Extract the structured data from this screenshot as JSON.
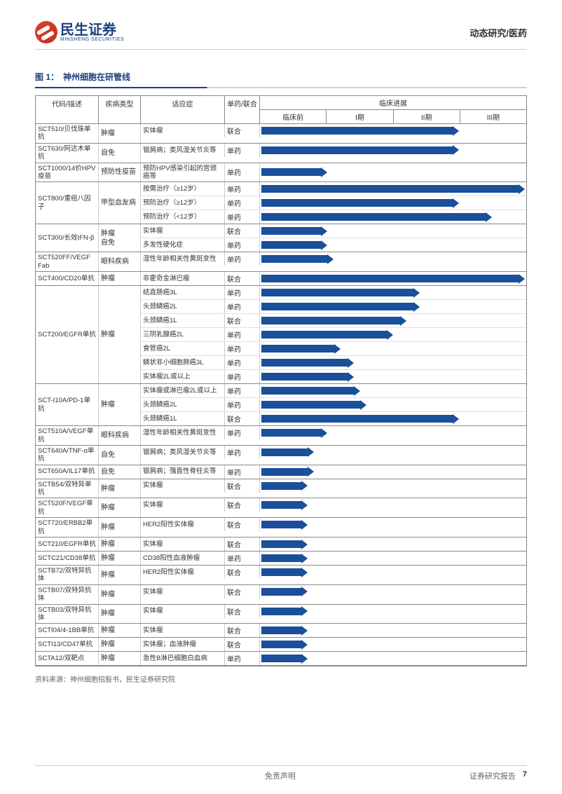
{
  "header": {
    "logo_zh": "民生证券",
    "logo_en": "MINSHENG SECURITIES",
    "right_text": "动态研究/医药"
  },
  "figure": {
    "label": "图 1：",
    "title": "神州细胞在研管线"
  },
  "table": {
    "columns": [
      "代码/描述",
      "疾病类型",
      "适应症",
      "单药/联合"
    ],
    "progress_header": "临床进展",
    "phases": [
      "临床前",
      "I期",
      "II期",
      "III期"
    ],
    "phase_count": 4,
    "arrow_color": "#1a4f9a",
    "rows": [
      {
        "code": "SCT510/贝伐珠单抗",
        "disease": "肿瘤",
        "sub": [
          {
            "indication": "实体瘤",
            "mono": "联合",
            "progress": 3.0
          }
        ]
      },
      {
        "code": "SCT630/阿达木单抗",
        "disease": "自免",
        "sub": [
          {
            "indication": "银屑病；类风湿关节炎等",
            "mono": "单药",
            "progress": 3.0
          }
        ]
      },
      {
        "code": "SCT1000/14价HPV 疫苗",
        "disease": "预防性疫苗",
        "sub": [
          {
            "indication": "预防HPV感染引起的宫颈癌等",
            "mono": "单药",
            "progress": 1.0
          }
        ]
      },
      {
        "code": "SCT800/重组八因子",
        "disease": "甲型血友病",
        "sub": [
          {
            "indication": "按需治疗（≥12岁）",
            "mono": "单药",
            "progress": 4.0
          },
          {
            "indication": "预防治疗（≥12岁）",
            "mono": "单药",
            "progress": 3.0
          },
          {
            "indication": "预防治疗（<12岁）",
            "mono": "单药",
            "progress": 3.5
          }
        ]
      },
      {
        "code": "SCT300/长效IFN-β",
        "disease": "肿瘤\n自免",
        "sub": [
          {
            "indication": "实体瘤",
            "mono": "联合",
            "progress": 1.0
          },
          {
            "indication": "多发性硬化症",
            "mono": "单药",
            "progress": 1.0
          }
        ]
      },
      {
        "code": "SCT520FF/VEGF Fab",
        "disease": "眼科疾病",
        "sub": [
          {
            "indication": "湿性年龄相关性黄斑变性",
            "mono": "单药",
            "progress": 1.1
          }
        ]
      },
      {
        "code": "SCT400/CD20单抗",
        "disease": "肿瘤",
        "sub": [
          {
            "indication": "非霍奇金淋巴瘤",
            "mono": "联合",
            "progress": 4.0
          }
        ]
      },
      {
        "code": "SCT200/EGFR单抗",
        "disease": "肿瘤",
        "sub": [
          {
            "indication": "结直肠癌3L",
            "mono": "单药",
            "progress": 2.4
          },
          {
            "indication": "头颈鳞癌2L",
            "mono": "单药",
            "progress": 2.4
          },
          {
            "indication": "头颈鳞癌1L",
            "mono": "联合",
            "progress": 2.2
          },
          {
            "indication": "三阴乳腺癌2L",
            "mono": "单药",
            "progress": 2.0
          },
          {
            "indication": "食管癌2L",
            "mono": "单药",
            "progress": 1.2
          },
          {
            "indication": "鳞状非小细胞肺癌3L",
            "mono": "单药",
            "progress": 1.4
          },
          {
            "indication": "实体瘤2L或以上",
            "mono": "单药",
            "progress": 1.4
          }
        ]
      },
      {
        "code": "SCT-I10A/PD-1单抗",
        "disease": "肿瘤",
        "sub": [
          {
            "indication": "实体瘤或淋巴瘤2L或以上",
            "mono": "单药",
            "progress": 1.5
          },
          {
            "indication": "头颈鳞癌2L",
            "mono": "单药",
            "progress": 1.6
          },
          {
            "indication": "头颈鳞癌1L",
            "mono": "联合",
            "progress": 3.0
          }
        ]
      },
      {
        "code": "SCT510A/VEGF单抗",
        "disease": "眼科疾病",
        "sub": [
          {
            "indication": "湿性年龄相关性黄斑变性",
            "mono": "单药",
            "progress": 1.0
          }
        ]
      },
      {
        "code": "SCT640A/TNF-α单抗",
        "disease": "自免",
        "sub": [
          {
            "indication": "银屑病；类风湿关节炎等",
            "mono": "单药",
            "progress": 0.8
          }
        ]
      },
      {
        "code": "SCT650A/IL17单抗",
        "disease": "自免",
        "sub": [
          {
            "indication": "银屑病；强直性脊柱炎等",
            "mono": "单药",
            "progress": 0.8
          }
        ]
      },
      {
        "code": "SCTB54/双特异单抗",
        "disease": "肿瘤",
        "sub": [
          {
            "indication": "实体瘤",
            "mono": "联合",
            "progress": 0.7
          }
        ]
      },
      {
        "code": "SCT520F/VEGF单抗",
        "disease": "肿瘤",
        "sub": [
          {
            "indication": "实体瘤",
            "mono": "联合",
            "progress": 0.7
          }
        ]
      },
      {
        "code": "SCT720/ERBB2单抗",
        "disease": "肿瘤",
        "sub": [
          {
            "indication": "HER2阳性实体瘤",
            "mono": "联合",
            "progress": 0.7
          }
        ]
      },
      {
        "code": "SCT210/EGFR单抗",
        "disease": "肿瘤",
        "sub": [
          {
            "indication": "实体瘤",
            "mono": "联合",
            "progress": 0.7
          }
        ]
      },
      {
        "code": "SCTC21/CD38单抗",
        "disease": "肿瘤",
        "sub": [
          {
            "indication": "CD38阳性血液肿瘤",
            "mono": "单药",
            "progress": 0.7
          }
        ]
      },
      {
        "code": "SCTB72/双特异抗体",
        "disease": "肿瘤",
        "sub": [
          {
            "indication": "HER2阳性实体瘤",
            "mono": "联合",
            "progress": 0.7
          }
        ]
      },
      {
        "code": "SCTB07/双特异抗体",
        "disease": "肿瘤",
        "sub": [
          {
            "indication": "实体瘤",
            "mono": "联合",
            "progress": 0.7
          }
        ]
      },
      {
        "code": "SCTB03/双特异抗体",
        "disease": "肿瘤",
        "sub": [
          {
            "indication": "实体瘤",
            "mono": "联合",
            "progress": 0.7
          }
        ]
      },
      {
        "code": "SCTI04/4-1BB单抗",
        "disease": "肿瘤",
        "sub": [
          {
            "indication": "实体瘤",
            "mono": "联合",
            "progress": 0.7
          }
        ]
      },
      {
        "code": "SCTI13/CD47单抗",
        "disease": "肿瘤",
        "sub": [
          {
            "indication": "实体瘤；血液肿瘤",
            "mono": "联合",
            "progress": 0.7
          }
        ]
      },
      {
        "code": "SCTA12/双靶点",
        "disease": "肿瘤",
        "sub": [
          {
            "indication": "急性B淋巴细胞白血病",
            "mono": "单药",
            "progress": 0.7
          }
        ]
      }
    ]
  },
  "source_note": "资料来源：神州细胞招股书，民生证券研究院",
  "footer": {
    "disclaimer": "免责声明",
    "report_label": "证券研究报告",
    "page_number": "7"
  }
}
